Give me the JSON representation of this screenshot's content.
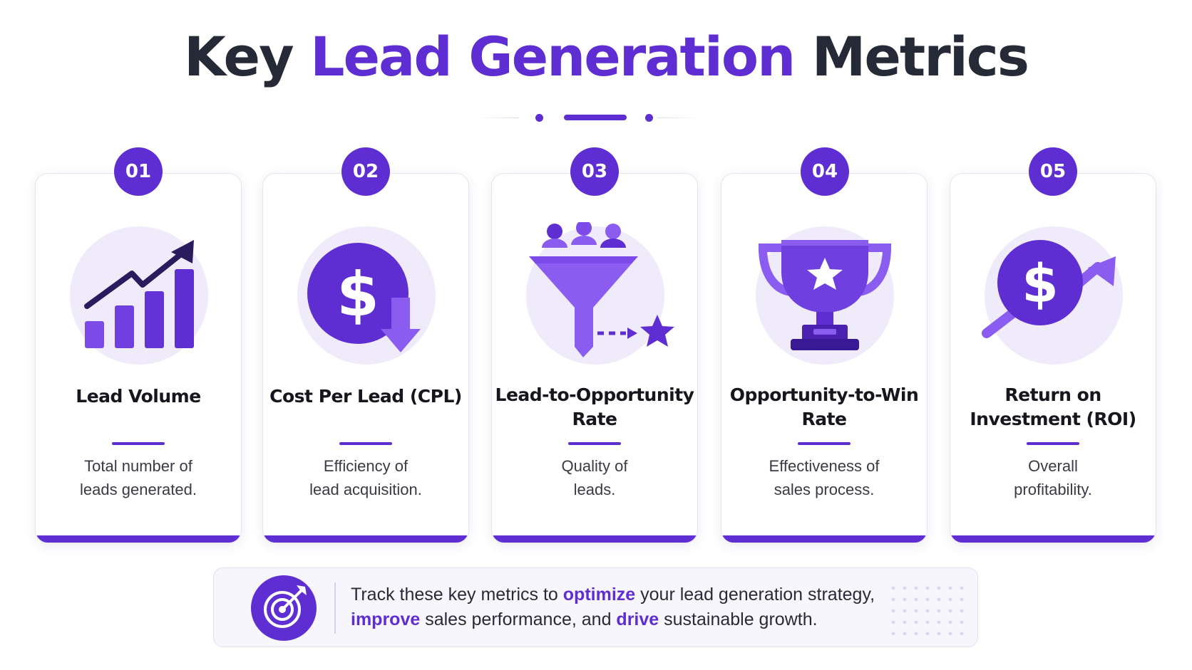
{
  "title": {
    "part1": "Key ",
    "part2": "Lead Generation",
    "part3": " Metrics"
  },
  "colors": {
    "accent": "#5f2ed3",
    "accent_light": "#8a5cf0",
    "accent_bg": "#efebfb",
    "text_dark": "#262a36"
  },
  "cards": [
    {
      "number": "01",
      "title_line1": "Lead Volume",
      "title_line2": "",
      "desc_line1": "Total number of",
      "desc_line2": "leads generated.",
      "icon": "growth-bar-chart-icon"
    },
    {
      "number": "02",
      "title_line1": "Cost Per Lead (CPL)",
      "title_line2": "",
      "desc_line1": "Efficiency of",
      "desc_line2": "lead acquisition.",
      "icon": "dollar-down-arrow-icon"
    },
    {
      "number": "03",
      "title_line1": "Lead-to-Opportunity",
      "title_line2": "Rate",
      "desc_line1": "Quality of",
      "desc_line2": "leads.",
      "icon": "funnel-people-star-icon"
    },
    {
      "number": "04",
      "title_line1": "Opportunity-to-Win",
      "title_line2": "Rate",
      "desc_line1": "Effectiveness of",
      "desc_line2": "sales process.",
      "icon": "trophy-star-icon"
    },
    {
      "number": "05",
      "title_line1": "Return on",
      "title_line2": "Investment (ROI)",
      "desc_line1": "Overall",
      "desc_line2": "profitability.",
      "icon": "dollar-up-trend-icon"
    }
  ],
  "banner": {
    "icon": "target-arrow-icon",
    "t1": "Track these key metrics to ",
    "h1": "optimize",
    "t2": " your lead generation strategy,",
    "h2": "improve",
    "t3": " sales performance, and ",
    "h3": "drive",
    "t4": " sustainable growth."
  }
}
